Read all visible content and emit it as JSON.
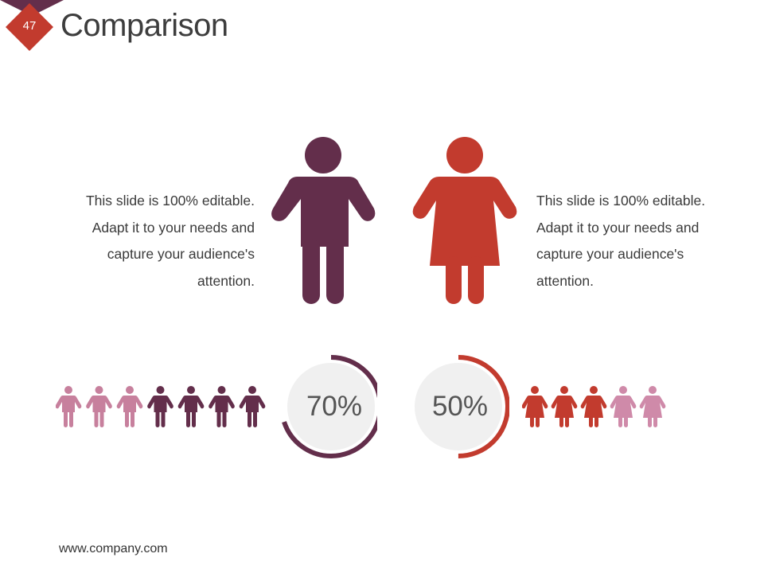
{
  "slide": {
    "number": "47",
    "title": "Comparison",
    "footer": "www.company.com"
  },
  "male": {
    "description": "This slide is 100% editable. Adapt it to your needs and capture your audience's attention.",
    "percent_label": "70%",
    "percent_value": 70,
    "icon": "male-person-icon",
    "icons_total": 7,
    "icons_highlighted": 4
  },
  "female": {
    "description": "This slide is 100% editable. Adapt it to your needs and capture your audience's attention.",
    "percent_label": "50%",
    "percent_value": 50,
    "icon": "female-person-icon",
    "icons_total": 5,
    "icons_highlighted": 3
  },
  "colors": {
    "accent_dark": "#632e4b",
    "accent_red": "#c23b2e",
    "male_light": "#c7809d",
    "female_light": "#cf8aa9",
    "gauge_bg": "#f0f0f0"
  }
}
